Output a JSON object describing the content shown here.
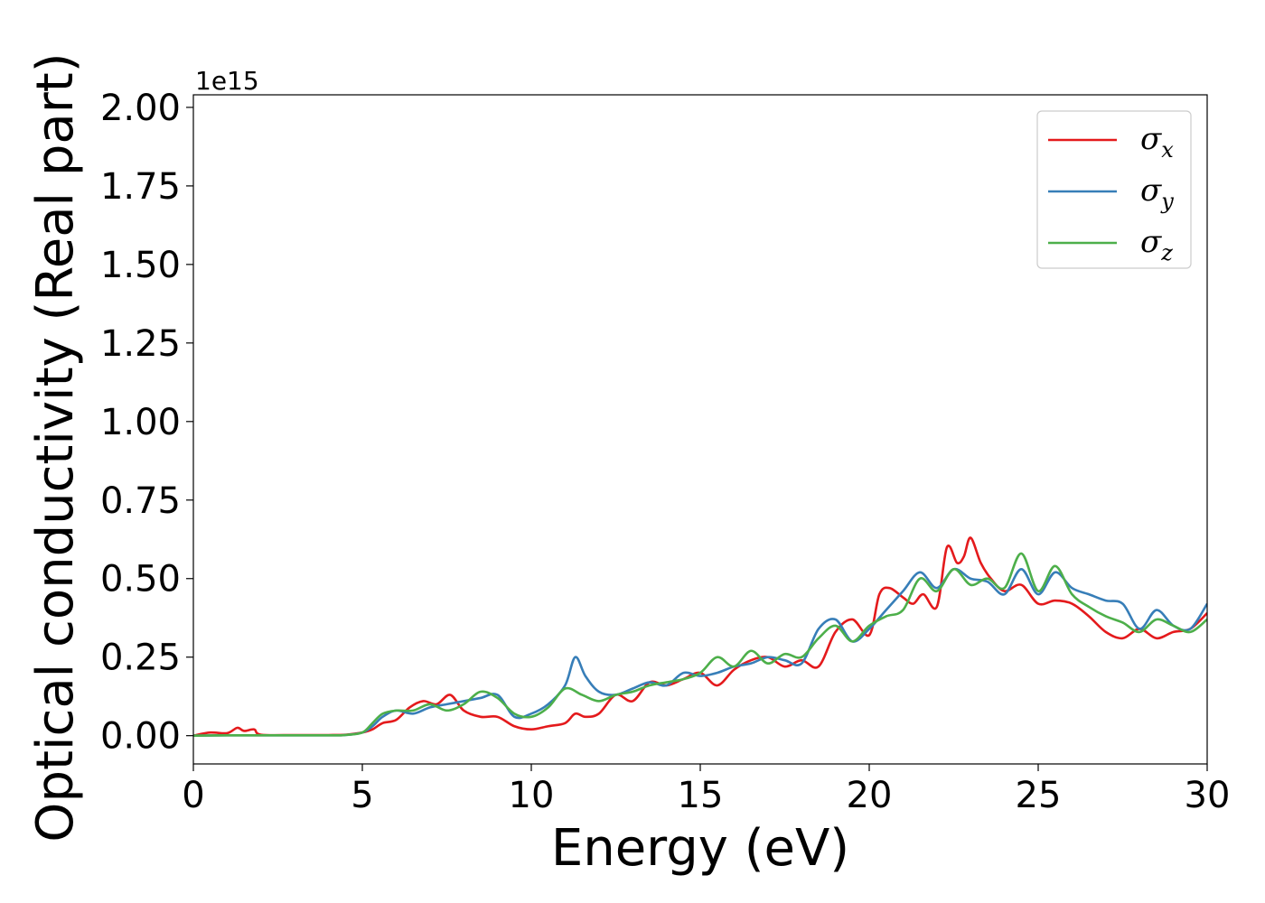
{
  "chart_data": {
    "type": "line",
    "xlabel": "Energy (eV)",
    "ylabel": "Optical conductivity (Real part)",
    "y_offset_label": "1e15",
    "y_scale_factor": 1000000000000000.0,
    "xlim": [
      0,
      30
    ],
    "ylim": [
      -0.09,
      2.04
    ],
    "x_ticks": [
      0,
      5,
      10,
      15,
      20,
      25,
      30
    ],
    "x_tick_labels": [
      "0",
      "5",
      "10",
      "15",
      "20",
      "25",
      "30"
    ],
    "y_ticks": [
      0,
      0.25,
      0.5,
      0.75,
      1.0,
      1.25,
      1.5,
      1.75,
      2.0
    ],
    "y_tick_labels": [
      "0.00",
      "0.25",
      "0.50",
      "0.75",
      "1.00",
      "1.25",
      "1.50",
      "1.75",
      "2.00"
    ],
    "grid": false,
    "legend_position": "top-right",
    "series": [
      {
        "name": "σx",
        "symbol": "σ",
        "subscript": "x",
        "color": "#e41a1c",
        "x": [
          0,
          0.5,
          1,
          1.3,
          1.5,
          1.8,
          2,
          3,
          4,
          4.5,
          5,
          5.3,
          5.6,
          6,
          6.4,
          6.8,
          7.2,
          7.6,
          8,
          8.5,
          9,
          9.5,
          10,
          10.5,
          11,
          11.3,
          11.6,
          12,
          12.5,
          13,
          13.5,
          14,
          14.5,
          15,
          15.5,
          16,
          16.5,
          17,
          17.5,
          18,
          18.5,
          19,
          19.5,
          20,
          20.3,
          20.6,
          21,
          21.3,
          21.6,
          22,
          22.3,
          22.6,
          22.8,
          23,
          23.3,
          23.6,
          24,
          24.5,
          25,
          25.5,
          26,
          26.5,
          27,
          27.5,
          28,
          28.5,
          29,
          29.5,
          30
        ],
        "y": [
          0,
          0.01,
          0.008,
          0.025,
          0.015,
          0.02,
          0.003,
          0.002,
          0.002,
          0.003,
          0.01,
          0.02,
          0.04,
          0.05,
          0.09,
          0.11,
          0.1,
          0.13,
          0.08,
          0.06,
          0.06,
          0.03,
          0.02,
          0.03,
          0.04,
          0.07,
          0.06,
          0.07,
          0.13,
          0.11,
          0.17,
          0.16,
          0.18,
          0.2,
          0.16,
          0.21,
          0.24,
          0.25,
          0.22,
          0.24,
          0.22,
          0.33,
          0.37,
          0.32,
          0.45,
          0.47,
          0.44,
          0.42,
          0.45,
          0.41,
          0.6,
          0.55,
          0.57,
          0.63,
          0.55,
          0.5,
          0.46,
          0.48,
          0.42,
          0.43,
          0.42,
          0.38,
          0.33,
          0.31,
          0.34,
          0.31,
          0.33,
          0.34,
          0.39
        ]
      },
      {
        "name": "σy",
        "symbol": "σ",
        "subscript": "y",
        "color": "#377eb8",
        "x": [
          0,
          1,
          2,
          3,
          4,
          4.5,
          5,
          5.3,
          5.6,
          6,
          6.5,
          7,
          7.5,
          8,
          8.5,
          9,
          9.5,
          10,
          10.5,
          11,
          11.3,
          11.6,
          12,
          12.5,
          13,
          13.5,
          14,
          14.5,
          15,
          15.5,
          16,
          16.5,
          17,
          17.5,
          18,
          18.5,
          19,
          19.5,
          20,
          20.5,
          21,
          21.5,
          22,
          22.5,
          23,
          23.5,
          24,
          24.5,
          25,
          25.5,
          26,
          26.5,
          27,
          27.5,
          28,
          28.5,
          29,
          29.5,
          30
        ],
        "y": [
          0,
          0.001,
          0.001,
          0.001,
          0.001,
          0.002,
          0.01,
          0.03,
          0.06,
          0.08,
          0.07,
          0.09,
          0.1,
          0.11,
          0.12,
          0.13,
          0.06,
          0.07,
          0.1,
          0.16,
          0.25,
          0.19,
          0.14,
          0.13,
          0.15,
          0.17,
          0.16,
          0.2,
          0.19,
          0.2,
          0.22,
          0.23,
          0.25,
          0.24,
          0.23,
          0.34,
          0.37,
          0.3,
          0.34,
          0.4,
          0.46,
          0.52,
          0.47,
          0.53,
          0.5,
          0.49,
          0.45,
          0.53,
          0.45,
          0.52,
          0.47,
          0.45,
          0.43,
          0.42,
          0.34,
          0.4,
          0.35,
          0.34,
          0.42
        ]
      },
      {
        "name": "σz",
        "symbol": "σ",
        "subscript": "z",
        "color": "#4daf4a",
        "x": [
          0,
          1,
          2,
          3,
          4,
          4.5,
          5,
          5.3,
          5.6,
          6,
          6.5,
          7,
          7.5,
          8,
          8.5,
          9,
          9.5,
          10,
          10.5,
          11,
          11.5,
          12,
          12.5,
          13,
          13.5,
          14,
          14.5,
          15,
          15.5,
          16,
          16.5,
          17,
          17.5,
          18,
          18.5,
          19,
          19.5,
          20,
          20.5,
          21,
          21.5,
          22,
          22.5,
          23,
          23.5,
          24,
          24.5,
          25,
          25.5,
          26,
          26.5,
          27,
          27.5,
          28,
          28.5,
          29,
          29.5,
          30
        ],
        "y": [
          0,
          0.001,
          0.001,
          0.001,
          0.001,
          0.002,
          0.01,
          0.04,
          0.07,
          0.08,
          0.08,
          0.1,
          0.08,
          0.1,
          0.14,
          0.12,
          0.07,
          0.06,
          0.09,
          0.15,
          0.13,
          0.11,
          0.13,
          0.14,
          0.16,
          0.17,
          0.18,
          0.2,
          0.25,
          0.22,
          0.27,
          0.23,
          0.26,
          0.25,
          0.31,
          0.35,
          0.3,
          0.35,
          0.38,
          0.4,
          0.5,
          0.46,
          0.53,
          0.48,
          0.5,
          0.47,
          0.58,
          0.46,
          0.54,
          0.45,
          0.41,
          0.38,
          0.36,
          0.33,
          0.37,
          0.35,
          0.33,
          0.37
        ]
      }
    ]
  }
}
